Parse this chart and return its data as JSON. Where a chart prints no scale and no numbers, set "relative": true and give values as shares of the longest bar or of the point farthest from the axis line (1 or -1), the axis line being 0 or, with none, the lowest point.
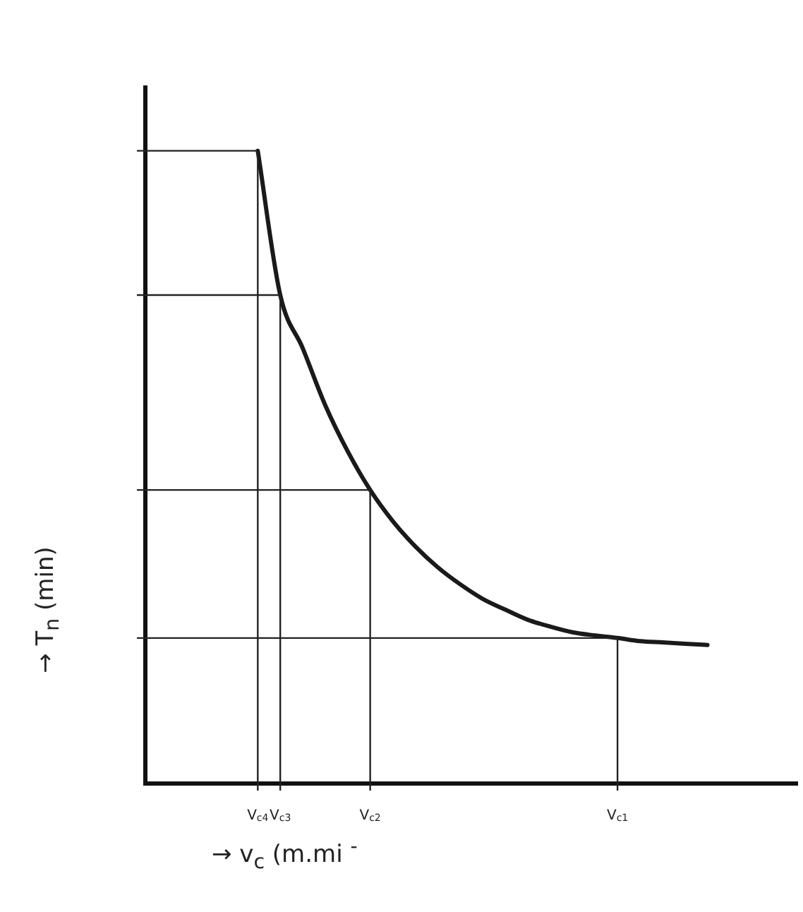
{
  "chart_data": {
    "type": "line",
    "relative": true,
    "xlabel": "→ v$_{c}$ (m.mi $^{-}$",
    "ylabel": "→ T$_{n}$ (min)",
    "categories": [
      null,
      null,
      null,
      null,
      null,
      "V$_{c4}$",
      "V$_{c3}$",
      null,
      null,
      null,
      "V$_{c2}$",
      null,
      null,
      null,
      null,
      null,
      null,
      null,
      null,
      null,
      null,
      "V$_{c1}$",
      null,
      null,
      null,
      null,
      null,
      null,
      null,
      null
    ],
    "series": [
      {
        "color": "#1a1a1a",
        "values": [
          null,
          null,
          null,
          null,
          null,
          1,
          0.772,
          0.688,
          0.598,
          0.525,
          0.464,
          0.415,
          0.375,
          0.342,
          0.315,
          0.292,
          0.275,
          0.259,
          0.248,
          0.239,
          0.234,
          0.23,
          0.225,
          0.223,
          0.221,
          0.219,
          null,
          null,
          null,
          null
        ]
      }
    ],
    "ref_lines": [
      {
        "axis": "y",
        "value": 1
      },
      {
        "axis": "y",
        "value": 0.772
      },
      {
        "axis": "y",
        "value": 0.464
      },
      {
        "axis": "y",
        "value": 0.23
      },
      {
        "axis": "x",
        "value": "V$_{c4}$"
      },
      {
        "axis": "x",
        "value": "V$_{c3}$"
      },
      {
        "axis": "x",
        "value": "V$_{c2}$"
      },
      {
        "axis": "x",
        "value": "V$_{c1}$"
      }
    ],
    "grid": false,
    "legend": false,
    "marker": "none",
    "line_style": "solid"
  }
}
